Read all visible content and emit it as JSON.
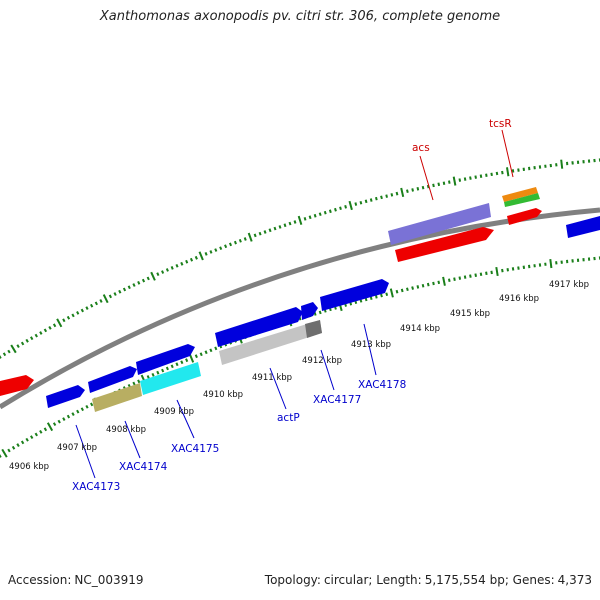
{
  "title": "Xanthomonas axonopodis pv. citri str. 306, complete genome",
  "footer": {
    "accession_label": "Accession:",
    "accession_value": "NC_003919",
    "topology_label": "Topology:",
    "topology_value": "circular",
    "length_label": "Length:",
    "length_value": "5,175,554 bp",
    "genes_label": "Genes:",
    "genes_value": "4,373"
  },
  "kbp_labels": [
    "4906 kbp",
    "4907 kbp",
    "4908 kbp",
    "4909 kbp",
    "4910 kbp",
    "4911 kbp",
    "4912 kbp",
    "4913 kbp",
    "4914 kbp",
    "4915 kbp",
    "4916 kbp",
    "4917 kbp"
  ],
  "gene_labels": [
    "XAC4173",
    "XAC4174",
    "XAC4175",
    "actP",
    "XAC4177",
    "XAC4178",
    "acs",
    "tcsR"
  ],
  "colors": {
    "backbone": "#808080",
    "ticks": "#1a7f1a",
    "forward_gene": "#0000dd",
    "reverse_gene": "#ee0000",
    "acs_feature": "#7a72d6",
    "xac4173_feature": "#b8ae62",
    "xac4175_feature": "#22e8ee",
    "actp_feature": "#c4c4c4",
    "tcsr_top": "#ee8a10",
    "tcsr_mid": "#33bb33",
    "gene_label": "#0000cc",
    "named_label": "#cc0000",
    "kbp_label": "#111111"
  }
}
